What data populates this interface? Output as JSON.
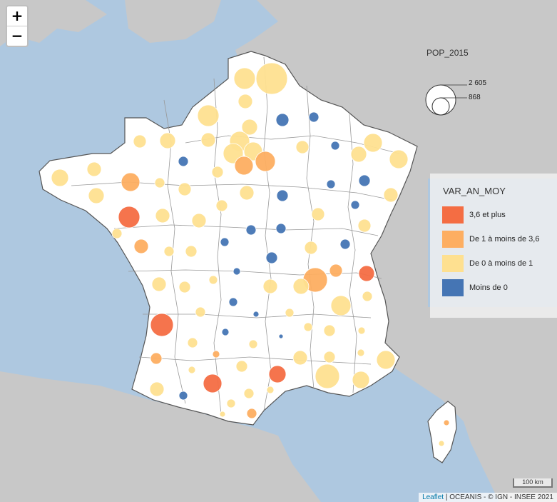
{
  "zoom": {
    "in_label": "+",
    "out_label": "−"
  },
  "pop_legend": {
    "title": "POP_2015",
    "max_label": "2 605",
    "min_label": "868"
  },
  "var_legend": {
    "title": "VAR_AN_MOY",
    "items": [
      {
        "label": "3,6 et plus",
        "color": "#f46d43"
      },
      {
        "label": "De 1 à moins de 3,6",
        "color": "#fdae61"
      },
      {
        "label": "De 0 à moins de 1",
        "color": "#fee090"
      },
      {
        "label": "Moins de 0",
        "color": "#4575b4"
      }
    ]
  },
  "scale": "100 km",
  "attribution": {
    "leaflet": "Leaflet",
    "separator": " | ",
    "source": "OCEANIS - © IGN - INSEE 2021"
  },
  "colors": {
    "sea": "#aec8e0",
    "land_foreign": "#c8c8c8",
    "france": "#ffffff",
    "border": "#888888"
  }
}
